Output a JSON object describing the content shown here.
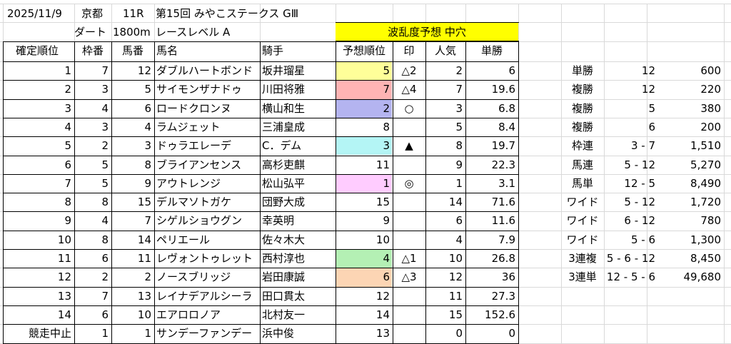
{
  "header": {
    "date": "2025/11/9",
    "venue": "京都",
    "race_no": "11R",
    "race_name": "第15回 みやこステークス GⅢ",
    "surface": "ダート",
    "distance": "1800m",
    "level": "レースレベル A",
    "upset_forecast": "波乱度予想 中穴"
  },
  "colors": {
    "yellow_banner": "#ffff00",
    "rank1": "#ffccff",
    "rank2": "#b4b4f0",
    "rank3": "#b4f5f5",
    "rank4": "#b4f0b4",
    "rank5": "#ffff99",
    "rank6": "#fcd5b4",
    "rank7": "#ffb4b4"
  },
  "columns": [
    "確定順位",
    "枠番",
    "馬番",
    "馬名",
    "騎手",
    "予想順位",
    "印",
    "人気",
    "単勝"
  ],
  "rows": [
    {
      "finish": "1",
      "gate": "7",
      "num": "12",
      "horse": "ダブルハートボンド",
      "jockey": "坂井瑠星",
      "pred": "5",
      "mark": "△2",
      "pop": "2",
      "odds": "6",
      "pred_color": "rank5"
    },
    {
      "finish": "2",
      "gate": "3",
      "num": "5",
      "horse": "サイモンザナドゥ",
      "jockey": "川田将雅",
      "pred": "7",
      "mark": "△4",
      "pop": "7",
      "odds": "19.6",
      "pred_color": "rank7"
    },
    {
      "finish": "3",
      "gate": "4",
      "num": "6",
      "horse": "ロードクロンヌ",
      "jockey": "横山和生",
      "pred": "2",
      "mark": "○",
      "pop": "3",
      "odds": "6.8",
      "pred_color": "rank2"
    },
    {
      "finish": "4",
      "gate": "3",
      "num": "4",
      "horse": "ラムジェット",
      "jockey": "三浦皇成",
      "pred": "8",
      "mark": "",
      "pop": "5",
      "odds": "8.4",
      "pred_color": ""
    },
    {
      "finish": "5",
      "gate": "2",
      "num": "3",
      "horse": "ドゥラエレーデ",
      "jockey": "C．デム",
      "pred": "3",
      "mark": "▲",
      "pop": "8",
      "odds": "19.7",
      "pred_color": "rank3"
    },
    {
      "finish": "6",
      "gate": "5",
      "num": "8",
      "horse": "ブライアンセンス",
      "jockey": "高杉吏麒",
      "pred": "11",
      "mark": "",
      "pop": "9",
      "odds": "22.3",
      "pred_color": ""
    },
    {
      "finish": "7",
      "gate": "5",
      "num": "9",
      "horse": "アウトレンジ",
      "jockey": "松山弘平",
      "pred": "1",
      "mark": "◎",
      "pop": "1",
      "odds": "3.1",
      "pred_color": "rank1"
    },
    {
      "finish": "8",
      "gate": "8",
      "num": "15",
      "horse": "デルマソトガケ",
      "jockey": "団野大成",
      "pred": "15",
      "mark": "",
      "pop": "14",
      "odds": "71.6",
      "pred_color": ""
    },
    {
      "finish": "9",
      "gate": "4",
      "num": "7",
      "horse": "シゲルショウグン",
      "jockey": "幸英明",
      "pred": "9",
      "mark": "",
      "pop": "6",
      "odds": "11.6",
      "pred_color": ""
    },
    {
      "finish": "10",
      "gate": "8",
      "num": "14",
      "horse": "ペリエール",
      "jockey": "佐々木大",
      "pred": "10",
      "mark": "",
      "pop": "4",
      "odds": "7.9",
      "pred_color": ""
    },
    {
      "finish": "11",
      "gate": "6",
      "num": "11",
      "horse": "レヴォントゥレット",
      "jockey": "西村淳也",
      "pred": "4",
      "mark": "△1",
      "pop": "10",
      "odds": "26.8",
      "pred_color": "rank4"
    },
    {
      "finish": "12",
      "gate": "2",
      "num": "2",
      "horse": "ノースブリッジ",
      "jockey": "岩田康誠",
      "pred": "6",
      "mark": "△3",
      "pop": "12",
      "odds": "36",
      "pred_color": "rank6"
    },
    {
      "finish": "13",
      "gate": "7",
      "num": "13",
      "horse": "レイナデアルシーラ",
      "jockey": "田口貫太",
      "pred": "12",
      "mark": "",
      "pop": "11",
      "odds": "27.3",
      "pred_color": ""
    },
    {
      "finish": "14",
      "gate": "6",
      "num": "10",
      "horse": "エアロロノア",
      "jockey": "北村友一",
      "pred": "14",
      "mark": "",
      "pop": "15",
      "odds": "152.6",
      "pred_color": ""
    },
    {
      "finish": "競走中止",
      "gate": "1",
      "num": "1",
      "horse": "サンデーファンデー",
      "jockey": "浜中俊",
      "pred": "13",
      "mark": "",
      "pop": "0",
      "odds": "0",
      "pred_color": ""
    }
  ],
  "payouts": [
    {
      "type": "単勝",
      "combo": "12",
      "amount": "600"
    },
    {
      "type": "複勝",
      "combo": "12",
      "amount": "220"
    },
    {
      "type": "複勝",
      "combo": "5",
      "amount": "380"
    },
    {
      "type": "複勝",
      "combo": "6",
      "amount": "200"
    },
    {
      "type": "枠連",
      "combo": "3 - 7",
      "amount": "1,510"
    },
    {
      "type": "馬連",
      "combo": "5 - 12",
      "amount": "5,270"
    },
    {
      "type": "馬単",
      "combo": "12 - 5",
      "amount": "8,490"
    },
    {
      "type": "ワイド",
      "combo": "5 - 12",
      "amount": "1,720"
    },
    {
      "type": "ワイド",
      "combo": "6 - 12",
      "amount": "780"
    },
    {
      "type": "ワイド",
      "combo": "5 - 6",
      "amount": "1,300"
    },
    {
      "type": "3連複",
      "combo": "5 - 6 - 12",
      "amount": "8,450"
    },
    {
      "type": "3連単",
      "combo": "12 - 5 - 6",
      "amount": "49,680"
    }
  ]
}
